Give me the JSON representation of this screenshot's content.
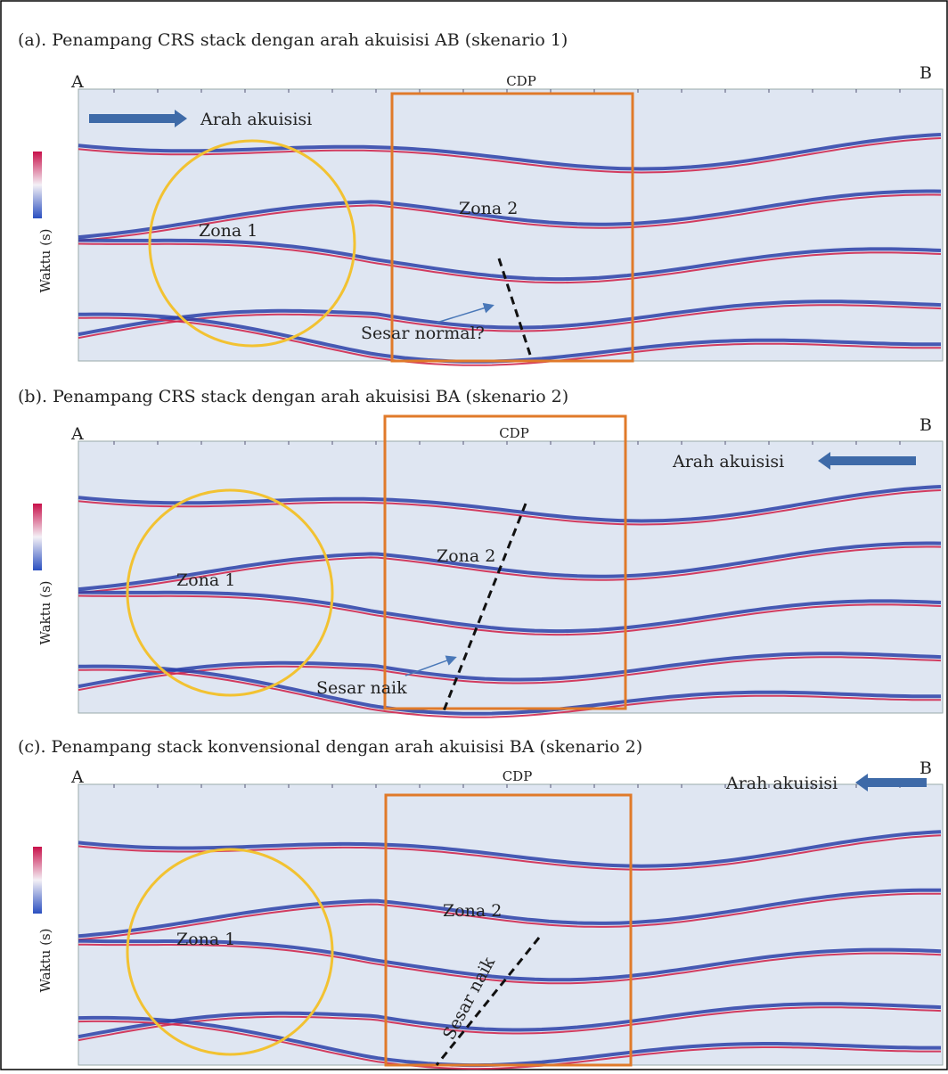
{
  "panels": [
    {
      "caption": "(a). Penampang CRS stack dengan arah akuisisi AB (skenario 1)",
      "a_label": "A",
      "b_label": "B",
      "cdp_label": "CDP",
      "acquisition_label": "Arah akuisisi",
      "zone1_label": "Zona 1",
      "zone2_label": "Zona 2",
      "fault_label": "Sesar normal?",
      "y_axis_label": "Waktu (s)"
    },
    {
      "caption": "(b). Penampang CRS stack dengan arah akuisisi BA (skenario 2)",
      "a_label": "A",
      "b_label": "B",
      "cdp_label": "CDP",
      "acquisition_label": "Arah akuisisi",
      "zone1_label": "Zona 1",
      "zone2_label": "Zona 2",
      "fault_label": "Sesar naik",
      "y_axis_label": "Waktu (s)"
    },
    {
      "caption": "(c). Penampang stack konvensional dengan arah akuisisi BA (skenario 2)",
      "a_label": "A",
      "b_label": "B",
      "cdp_label": "CDP",
      "acquisition_label": "Arah akuisisi",
      "zone1_label": "Zona 1",
      "zone2_label": "Zona 2",
      "fault_label": "Sesar naik",
      "y_axis_label": "Waktu (s)"
    }
  ]
}
